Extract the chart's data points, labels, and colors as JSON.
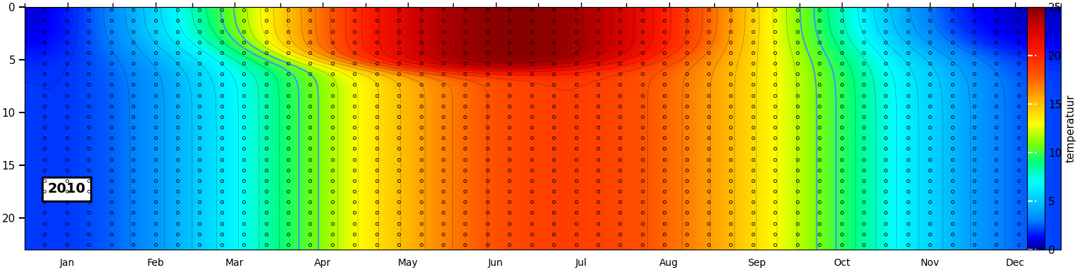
{
  "title": "",
  "year_label": "2010",
  "colorbar_label": "temperatuur",
  "colorbar_ticks": [
    0,
    5,
    10,
    15,
    20,
    25
  ],
  "months": [
    "Jan",
    "Feb",
    "Mar",
    "Apr",
    "May",
    "Jun",
    "Jul",
    "Aug",
    "Sep",
    "Oct",
    "Nov",
    "Dec"
  ],
  "month_positions": [
    15,
    46,
    74,
    105,
    135,
    166,
    196,
    227,
    258,
    288,
    319,
    349
  ],
  "month_boundaries": [
    0,
    31,
    59,
    90,
    120,
    151,
    181,
    212,
    243,
    273,
    304,
    334,
    365
  ],
  "depth_ticks": [
    0,
    5,
    10,
    15,
    20
  ],
  "vmin": 0,
  "vmax": 25,
  "n_days": 365,
  "max_depth": 23,
  "background_color": "#ffffff",
  "blue_contour_levels": [
    10,
    11
  ],
  "black_contour_levels_step": 1
}
